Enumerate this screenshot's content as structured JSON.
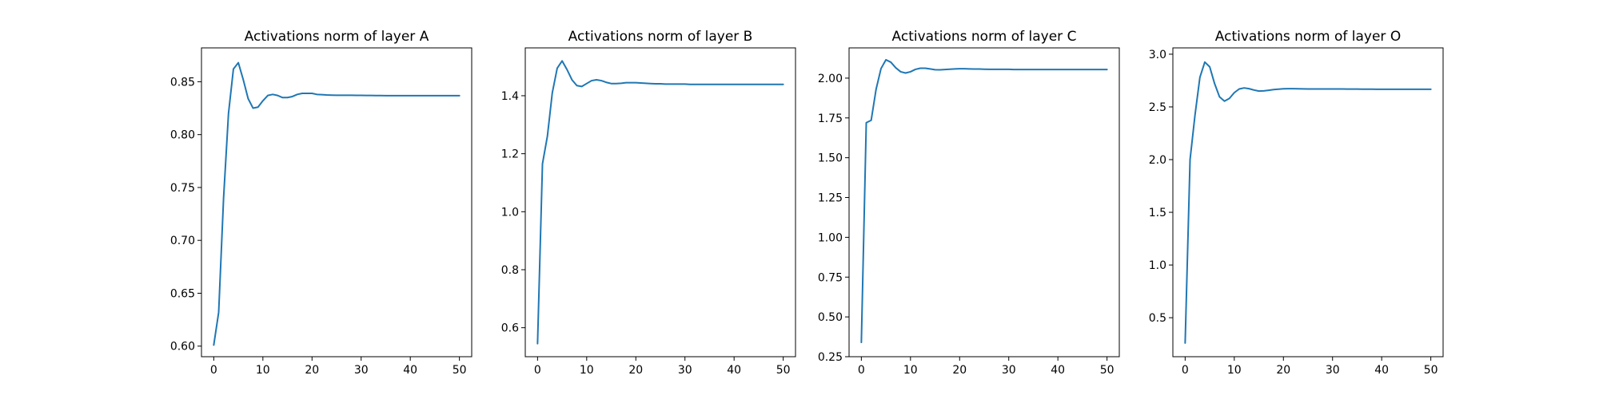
{
  "chart_data": [
    {
      "type": "line",
      "title": "Activations norm of layer A",
      "xlabel": "",
      "ylabel": "",
      "xlim": [
        -2.5,
        52.5
      ],
      "ylim": [
        0.59,
        0.882
      ],
      "xticks": [
        0,
        10,
        20,
        30,
        40,
        50
      ],
      "xtick_labels": [
        "0",
        "10",
        "20",
        "30",
        "40",
        "50"
      ],
      "yticks": [
        0.6,
        0.65,
        0.7,
        0.75,
        0.8,
        0.85
      ],
      "ytick_labels": [
        "0.60",
        "0.65",
        "0.70",
        "0.75",
        "0.80",
        "0.85"
      ],
      "grid": false,
      "series": [
        {
          "color": "#1f77b4",
          "x": [
            0,
            1,
            2,
            3,
            4,
            5,
            6,
            7,
            8,
            9,
            10,
            11,
            12,
            13,
            14,
            15,
            16,
            17,
            18,
            19,
            20,
            21,
            22,
            23,
            24,
            25,
            26,
            27,
            28,
            29,
            30,
            31,
            32,
            33,
            34,
            35,
            36,
            37,
            38,
            39,
            40,
            41,
            42,
            43,
            44,
            45,
            46,
            47,
            48,
            49,
            50
          ],
          "y": [
            0.601,
            0.632,
            0.74,
            0.82,
            0.862,
            0.868,
            0.852,
            0.834,
            0.825,
            0.826,
            0.832,
            0.837,
            0.838,
            0.837,
            0.835,
            0.835,
            0.836,
            0.838,
            0.839,
            0.839,
            0.839,
            0.838,
            0.8378,
            0.8375,
            0.8373,
            0.8372,
            0.8372,
            0.8372,
            0.8372,
            0.8371,
            0.8371,
            0.837,
            0.837,
            0.8369,
            0.8369,
            0.8368,
            0.8368,
            0.8368,
            0.8368,
            0.8368,
            0.8368,
            0.8368,
            0.8368,
            0.8368,
            0.8368,
            0.8368,
            0.8368,
            0.8368,
            0.8368,
            0.8368,
            0.8368
          ]
        }
      ]
    },
    {
      "type": "line",
      "title": "Activations norm of layer B",
      "xlabel": "",
      "ylabel": "",
      "xlim": [
        -2.5,
        52.5
      ],
      "ylim": [
        0.5,
        1.565
      ],
      "xticks": [
        0,
        10,
        20,
        30,
        40,
        50
      ],
      "xtick_labels": [
        "0",
        "10",
        "20",
        "30",
        "40",
        "50"
      ],
      "yticks": [
        0.6,
        0.8,
        1.0,
        1.2,
        1.4
      ],
      "ytick_labels": [
        "0.6",
        "0.8",
        "1.0",
        "1.2",
        "1.4"
      ],
      "grid": false,
      "series": [
        {
          "color": "#1f77b4",
          "x": [
            0,
            1,
            2,
            3,
            4,
            5,
            6,
            7,
            8,
            9,
            10,
            11,
            12,
            13,
            14,
            15,
            16,
            17,
            18,
            19,
            20,
            21,
            22,
            23,
            24,
            25,
            26,
            27,
            28,
            29,
            30,
            31,
            32,
            33,
            34,
            35,
            36,
            37,
            38,
            39,
            40,
            41,
            42,
            43,
            44,
            45,
            46,
            47,
            48,
            49,
            50
          ],
          "y": [
            0.545,
            1.165,
            1.26,
            1.41,
            1.495,
            1.52,
            1.49,
            1.455,
            1.435,
            1.432,
            1.442,
            1.452,
            1.455,
            1.452,
            1.446,
            1.442,
            1.442,
            1.443,
            1.445,
            1.445,
            1.445,
            1.444,
            1.443,
            1.442,
            1.441,
            1.441,
            1.44,
            1.44,
            1.44,
            1.44,
            1.44,
            1.439,
            1.439,
            1.439,
            1.439,
            1.439,
            1.439,
            1.439,
            1.439,
            1.439,
            1.439,
            1.439,
            1.439,
            1.439,
            1.439,
            1.439,
            1.439,
            1.439,
            1.439,
            1.439,
            1.439
          ]
        }
      ]
    },
    {
      "type": "line",
      "title": "Activations norm of layer C",
      "xlabel": "",
      "ylabel": "",
      "xlim": [
        -2.5,
        52.5
      ],
      "ylim": [
        0.25,
        2.19
      ],
      "xticks": [
        0,
        10,
        20,
        30,
        40,
        50
      ],
      "xtick_labels": [
        "0",
        "10",
        "20",
        "30",
        "40",
        "50"
      ],
      "yticks": [
        0.25,
        0.5,
        0.75,
        1.0,
        1.25,
        1.5,
        1.75,
        2.0
      ],
      "ytick_labels": [
        "0.25",
        "0.50",
        "0.75",
        "1.00",
        "1.25",
        "1.50",
        "1.75",
        "2.00"
      ],
      "grid": false,
      "series": [
        {
          "color": "#1f77b4",
          "x": [
            0,
            1,
            2,
            3,
            4,
            5,
            6,
            7,
            8,
            9,
            10,
            11,
            12,
            13,
            14,
            15,
            16,
            17,
            18,
            19,
            20,
            21,
            22,
            23,
            24,
            25,
            26,
            27,
            28,
            29,
            30,
            31,
            32,
            33,
            34,
            35,
            36,
            37,
            38,
            39,
            40,
            41,
            42,
            43,
            44,
            45,
            46,
            47,
            48,
            49,
            50
          ],
          "y": [
            0.34,
            1.72,
            1.735,
            1.93,
            2.06,
            2.115,
            2.1,
            2.065,
            2.04,
            2.032,
            2.04,
            2.055,
            2.062,
            2.062,
            2.058,
            2.053,
            2.052,
            2.054,
            2.056,
            2.058,
            2.059,
            2.059,
            2.058,
            2.057,
            2.057,
            2.056,
            2.055,
            2.055,
            2.055,
            2.055,
            2.055,
            2.054,
            2.054,
            2.054,
            2.054,
            2.054,
            2.054,
            2.054,
            2.054,
            2.054,
            2.054,
            2.054,
            2.054,
            2.054,
            2.054,
            2.054,
            2.054,
            2.054,
            2.054,
            2.054,
            2.054
          ]
        }
      ]
    },
    {
      "type": "line",
      "title": "Activations norm of layer O",
      "xlabel": "",
      "ylabel": "",
      "xlim": [
        -2.5,
        52.5
      ],
      "ylim": [
        0.13,
        3.06
      ],
      "xticks": [
        0,
        10,
        20,
        30,
        40,
        50
      ],
      "xtick_labels": [
        "0",
        "10",
        "20",
        "30",
        "40",
        "50"
      ],
      "yticks": [
        0.5,
        1.0,
        1.5,
        2.0,
        2.5,
        3.0
      ],
      "ytick_labels": [
        "0.5",
        "1.0",
        "1.5",
        "2.0",
        "2.5",
        "3.0"
      ],
      "grid": false,
      "series": [
        {
          "color": "#1f77b4",
          "x": [
            0,
            1,
            2,
            3,
            4,
            5,
            6,
            7,
            8,
            9,
            10,
            11,
            12,
            13,
            14,
            15,
            16,
            17,
            18,
            19,
            20,
            21,
            22,
            23,
            24,
            25,
            26,
            27,
            28,
            29,
            30,
            31,
            32,
            33,
            34,
            35,
            36,
            37,
            38,
            39,
            40,
            41,
            42,
            43,
            44,
            45,
            46,
            47,
            48,
            49,
            50
          ],
          "y": [
            0.26,
            2.0,
            2.42,
            2.78,
            2.925,
            2.88,
            2.72,
            2.595,
            2.555,
            2.58,
            2.635,
            2.67,
            2.68,
            2.673,
            2.66,
            2.65,
            2.652,
            2.658,
            2.664,
            2.668,
            2.672,
            2.673,
            2.673,
            2.672,
            2.671,
            2.67,
            2.67,
            2.67,
            2.67,
            2.67,
            2.67,
            2.67,
            2.67,
            2.669,
            2.669,
            2.669,
            2.668,
            2.668,
            2.668,
            2.667,
            2.667,
            2.667,
            2.667,
            2.667,
            2.667,
            2.667,
            2.667,
            2.667,
            2.667,
            2.667,
            2.667
          ]
        }
      ]
    }
  ]
}
